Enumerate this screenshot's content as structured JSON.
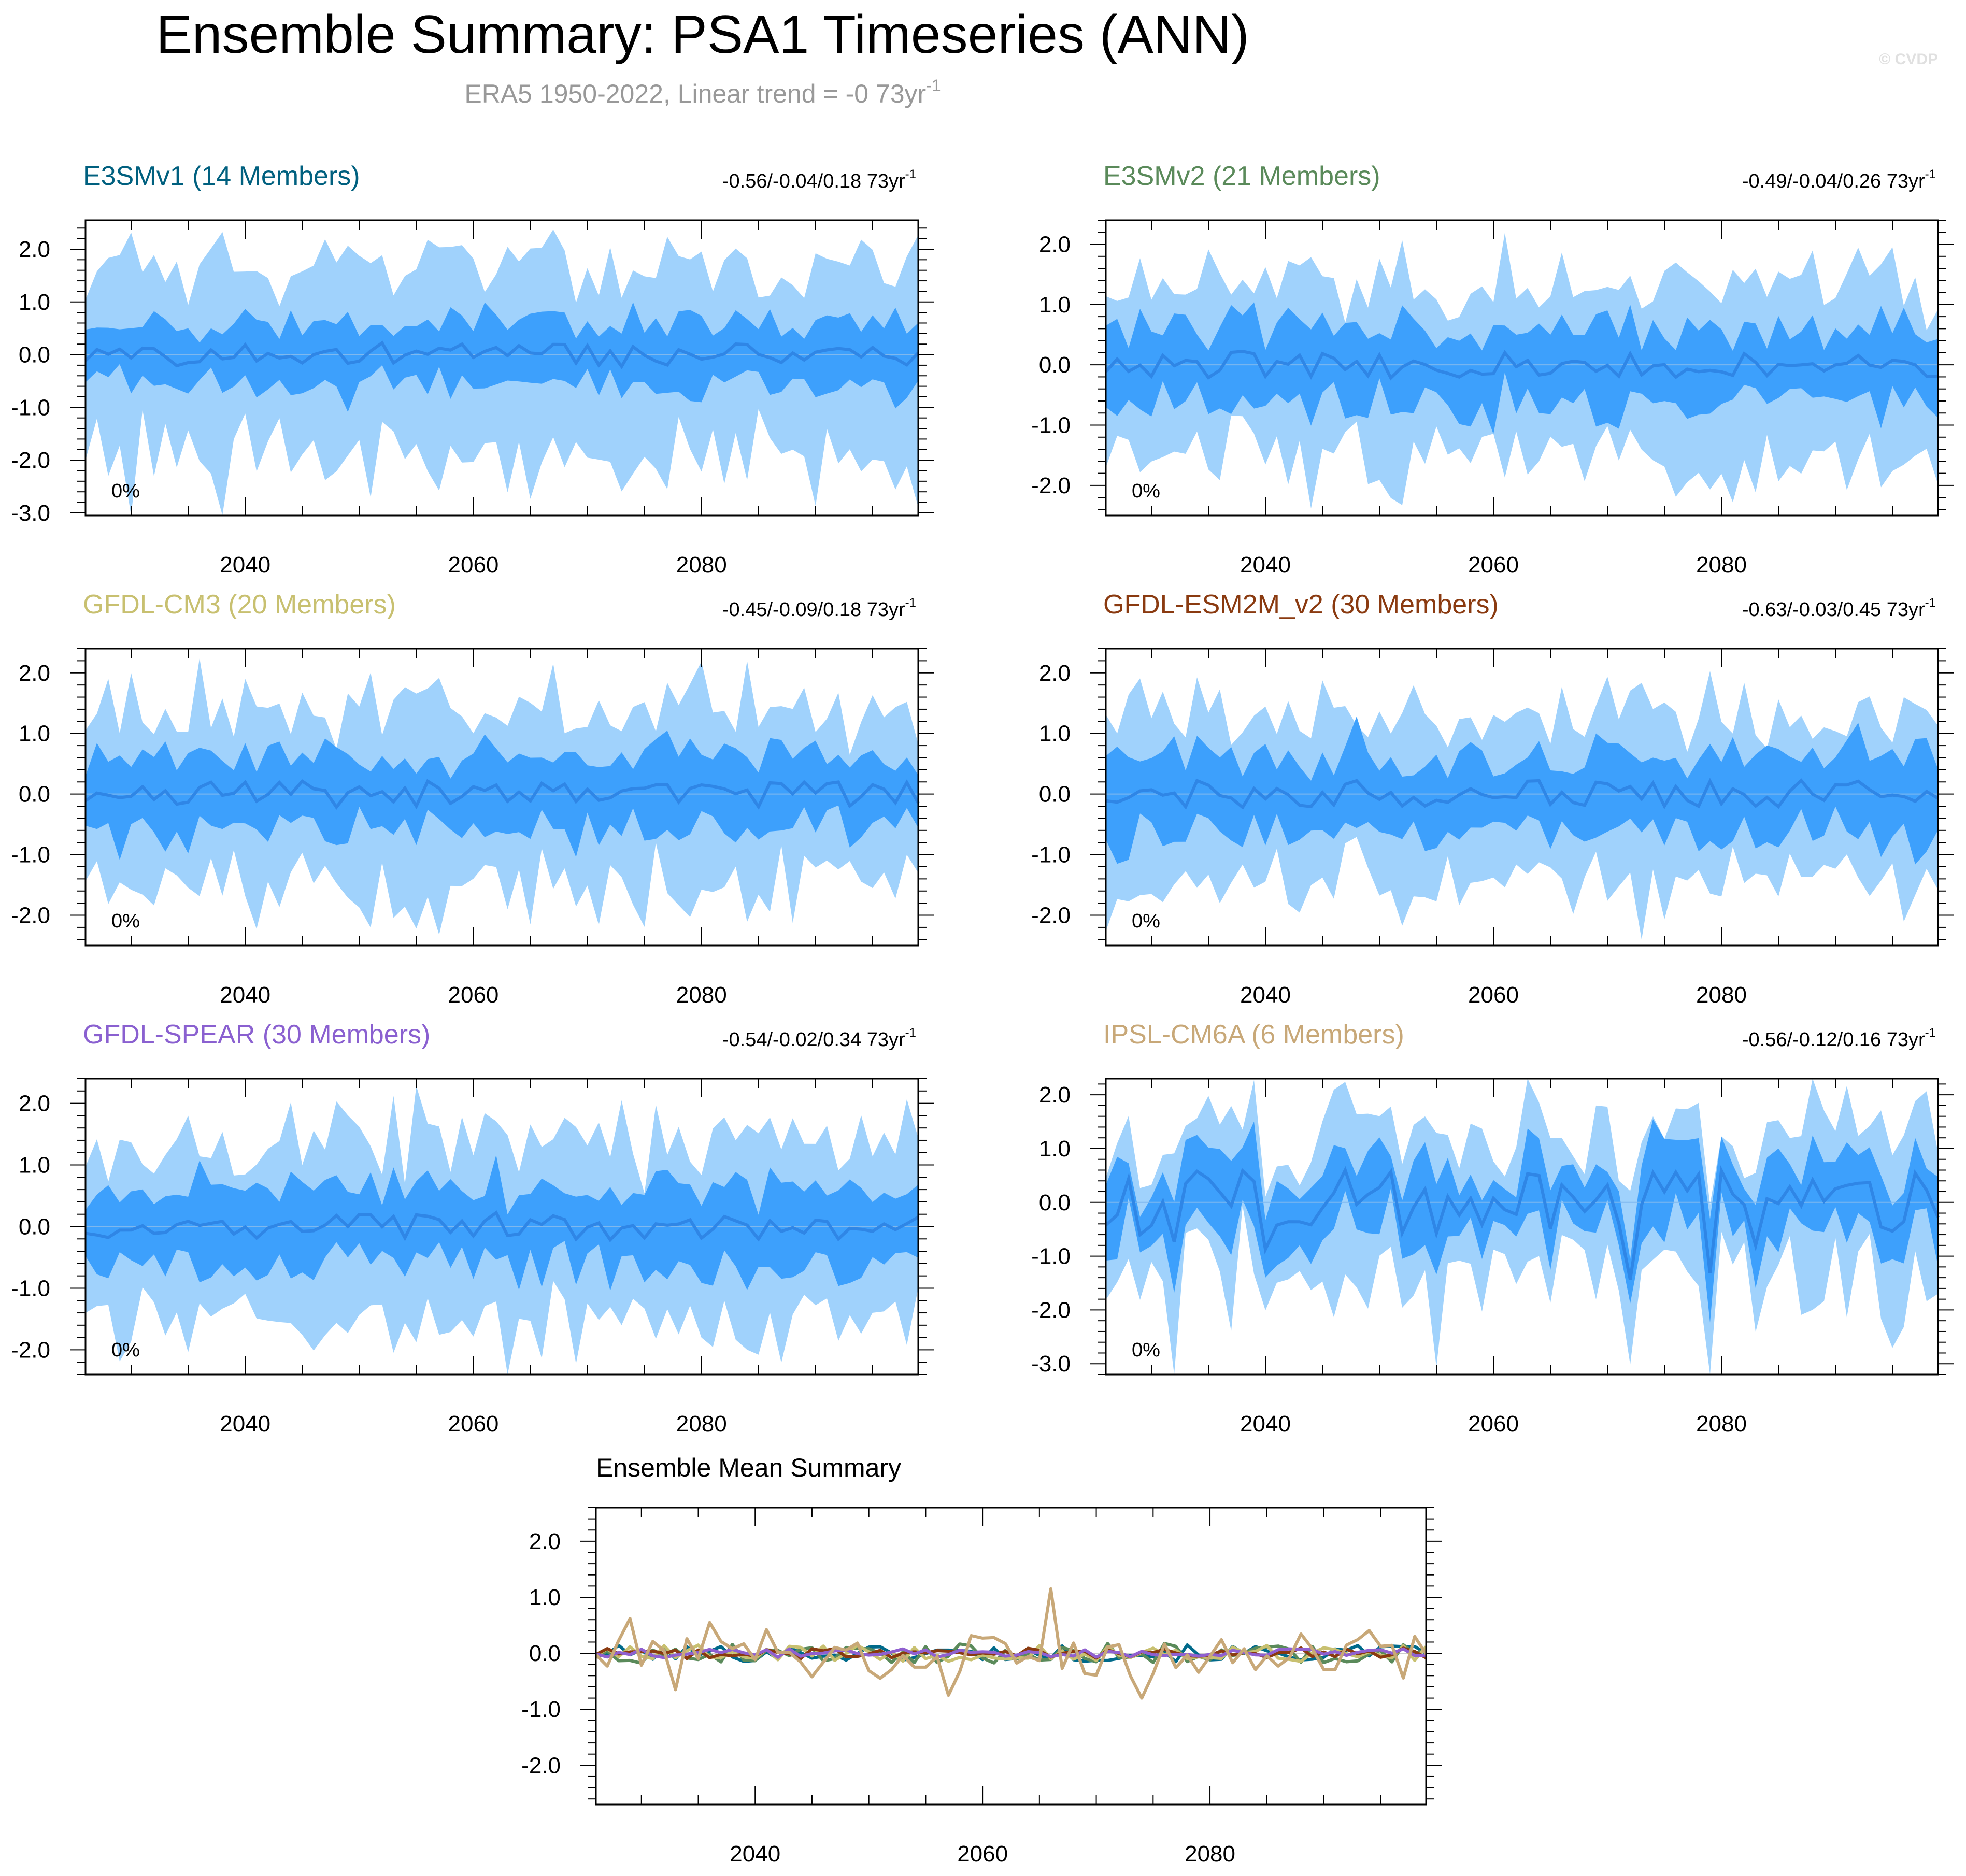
{
  "title": "Ensemble Summary: PSA1 Timeseries (ANN)",
  "subtitle": {
    "text": "ERA5 1950-2022, Linear trend = -0 73yr",
    "superscript": "-1"
  },
  "watermark": "© CVDP",
  "colors": {
    "outer_band": "#a0d2fc",
    "inner_band": "#3da0fc",
    "mean_line": "#2f86e6",
    "axis": "#000000",
    "subtitle": "#999999",
    "watermark": "#e0e0e0"
  },
  "x_ticks": [
    "2040",
    "2060",
    "2080"
  ],
  "chart_data": [
    {
      "type": "area",
      "title": "E3SMv1 (14 Members)",
      "title_color": "#00607f",
      "trend_text": "-0.56/-0.04/0.18 73yr",
      "trend_sup": "-1",
      "percent_label": "0%",
      "x_range": [
        2026,
        2099
      ],
      "ylim": [
        -3.05,
        2.55
      ],
      "y_ticks": [
        "2.0",
        "1.0",
        "0.0",
        "-1.0",
        "-2.0",
        "-3.0"
      ],
      "outer_spread": 1.7,
      "inner_spread": 0.55,
      "seed": 11
    },
    {
      "type": "area",
      "title": "E3SMv2 (21 Members)",
      "title_color": "#5a8a5a",
      "trend_text": "-0.49/-0.04/0.26 73yr",
      "trend_sup": "-1",
      "percent_label": "0%",
      "x_range": [
        2026,
        2099
      ],
      "ylim": [
        -2.5,
        2.4
      ],
      "y_ticks": [
        "2.0",
        "1.0",
        "0.0",
        "-1.0",
        "-2.0"
      ],
      "outer_spread": 1.35,
      "inner_spread": 0.6,
      "seed": 23
    },
    {
      "type": "area",
      "title": "GFDL-CM3 (20 Members)",
      "title_color": "#c8c070",
      "trend_text": "-0.45/-0.09/0.18 73yr",
      "trend_sup": "-1",
      "percent_label": "0%",
      "x_range": [
        2026,
        2099
      ],
      "ylim": [
        -2.5,
        2.4
      ],
      "y_ticks": [
        "2.0",
        "1.0",
        "0.0",
        "-1.0",
        "-2.0"
      ],
      "outer_spread": 1.4,
      "inner_spread": 0.6,
      "seed": 37
    },
    {
      "type": "area",
      "title": "GFDL-ESM2M_v2 (30 Members)",
      "title_color": "#8a3a10",
      "trend_text": "-0.63/-0.03/0.45 73yr",
      "trend_sup": "-1",
      "percent_label": "0%",
      "x_range": [
        2026,
        2099
      ],
      "ylim": [
        -2.5,
        2.4
      ],
      "y_ticks": [
        "2.0",
        "1.0",
        "0.0",
        "-1.0",
        "-2.0"
      ],
      "outer_spread": 1.3,
      "inner_spread": 0.6,
      "seed": 41
    },
    {
      "type": "area",
      "title": "GFDL-SPEAR (30 Members)",
      "title_color": "#8a60d0",
      "trend_text": "-0.54/-0.02/0.34 73yr",
      "trend_sup": "-1",
      "percent_label": "0%",
      "x_range": [
        2026,
        2099
      ],
      "ylim": [
        -2.4,
        2.4
      ],
      "y_ticks": [
        "2.0",
        "1.0",
        "0.0",
        "-1.0",
        "-2.0"
      ],
      "outer_spread": 1.35,
      "inner_spread": 0.6,
      "seed": 53
    },
    {
      "type": "area",
      "title": "IPSL-CM6A (6 Members)",
      "title_color": "#c8a878",
      "trend_text": "-0.56/-0.12/0.16 73yr",
      "trend_sup": "-1",
      "percent_label": "0%",
      "x_range": [
        2026,
        2099
      ],
      "ylim": [
        -3.2,
        2.3
      ],
      "y_ticks": [
        "2.0",
        "1.0",
        "0.0",
        "-1.0",
        "-2.0",
        "-3.0"
      ],
      "outer_spread": 1.05,
      "inner_spread": 0.7,
      "seed": 67,
      "volatile": true
    },
    {
      "type": "line",
      "title": "Ensemble Mean Summary",
      "title_color": "#000000",
      "x_range": [
        2026,
        2099
      ],
      "ylim": [
        -2.7,
        2.6
      ],
      "y_ticks": [
        "2.0",
        "1.0",
        "0.0",
        "-1.0",
        "-2.0"
      ],
      "series": [
        {
          "name": "E3SMv1",
          "color": "#006a8a",
          "amplitude": 0.15,
          "seed": 101
        },
        {
          "name": "E3SMv2",
          "color": "#5a8a5a",
          "amplitude": 0.18,
          "seed": 202
        },
        {
          "name": "GFDL-CM3",
          "color": "#c8c070",
          "amplitude": 0.15,
          "seed": 303
        },
        {
          "name": "GFDL-ESM2M_v2",
          "color": "#8a3a10",
          "amplitude": 0.1,
          "seed": 404
        },
        {
          "name": "GFDL-SPEAR",
          "color": "#9060d0",
          "amplitude": 0.08,
          "seed": 505
        },
        {
          "name": "IPSL-CM6A",
          "color": "#c8a878",
          "amplitude": 0.45,
          "seed": 606,
          "spikes": [
            [
              2066,
              1.15
            ],
            [
              2029,
              0.62
            ],
            [
              2036,
              0.55
            ],
            [
              2074,
              -0.8
            ],
            [
              2033,
              -0.65
            ],
            [
              2057,
              -0.75
            ]
          ]
        }
      ]
    }
  ]
}
